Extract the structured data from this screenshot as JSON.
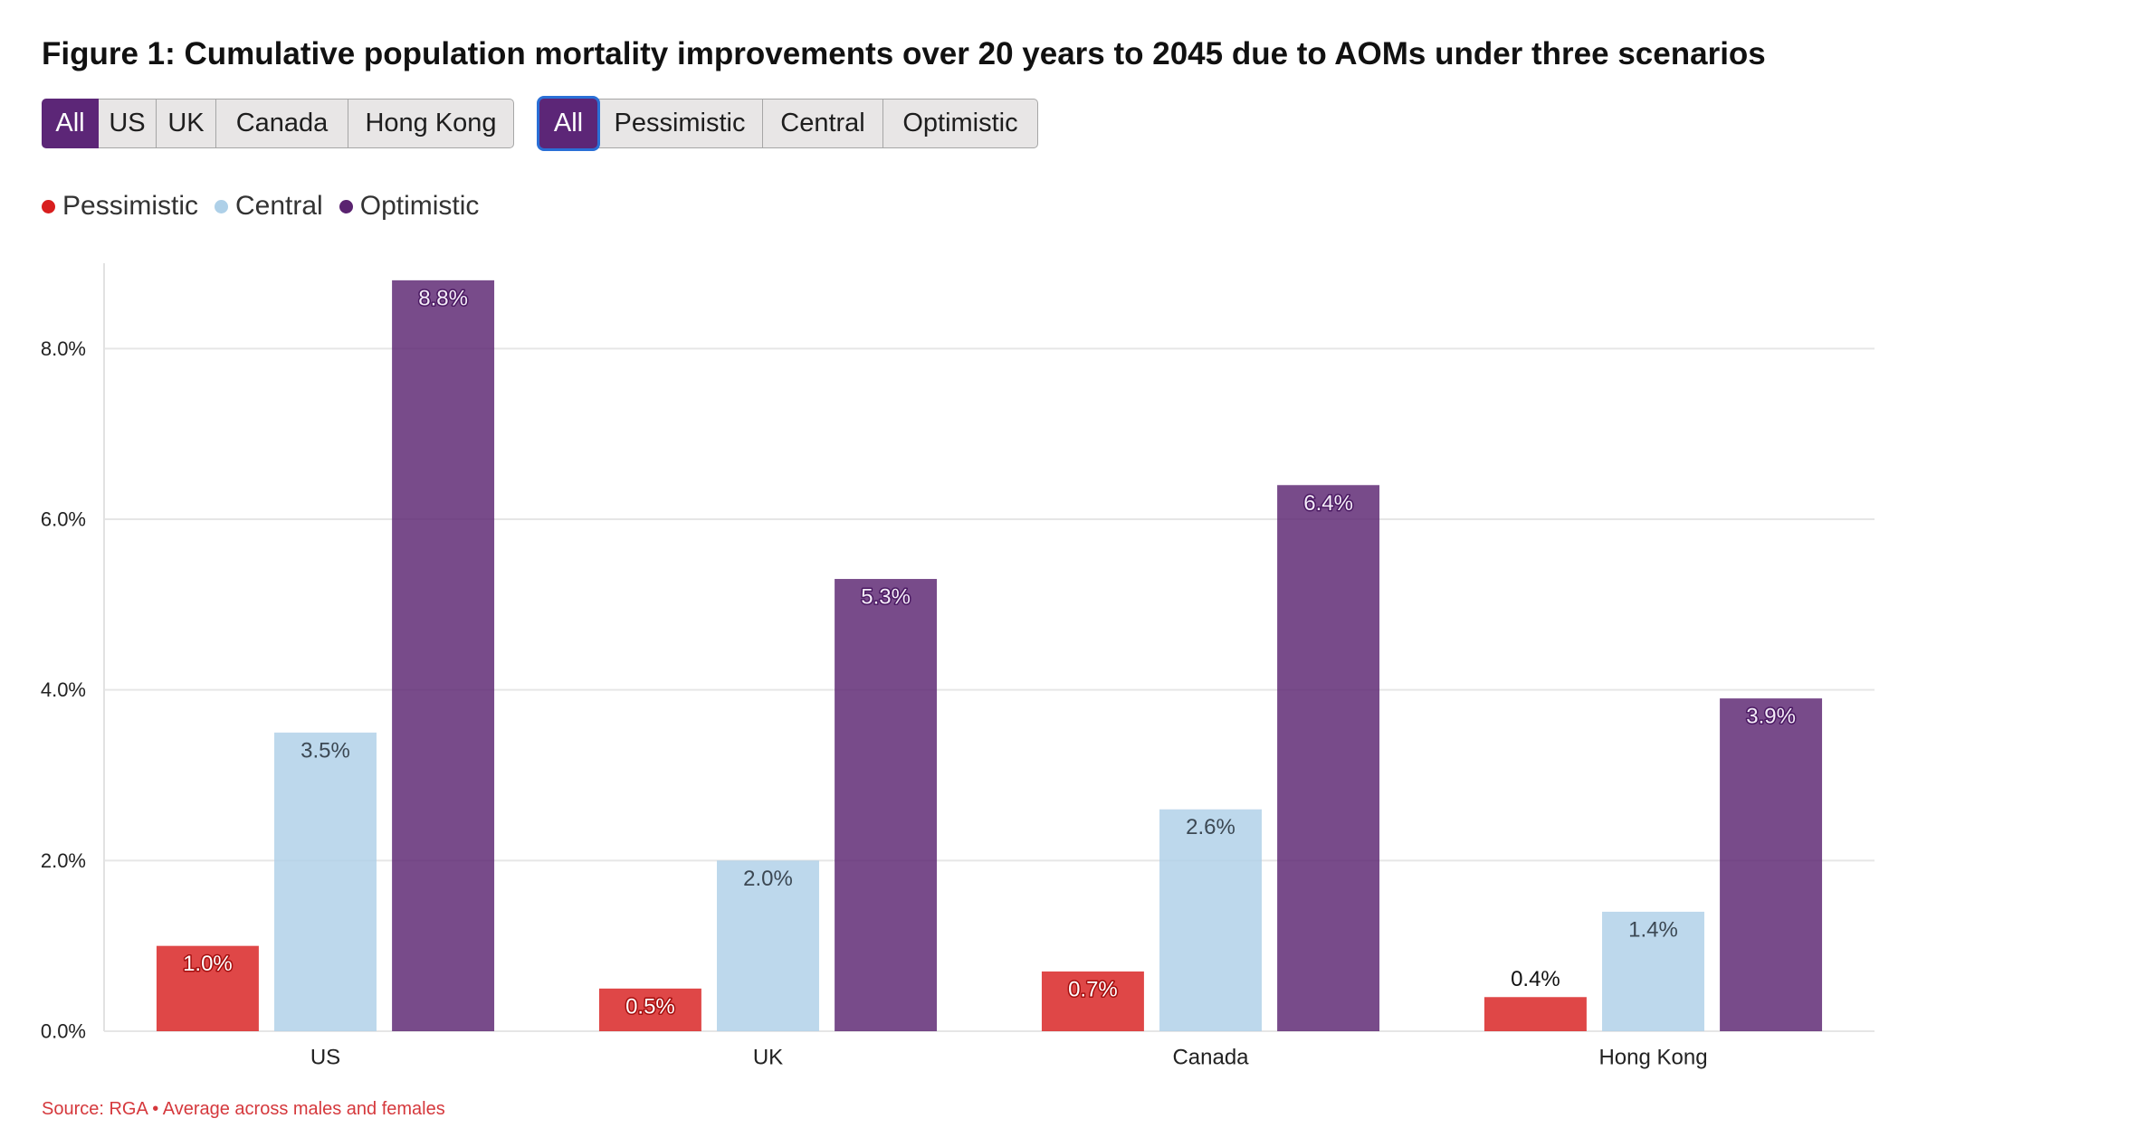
{
  "theme": {
    "accent_color": "#5c2677",
    "focus_ring_color": "#2a6fd6",
    "source_text_color": "#d5383c"
  },
  "filters": {
    "region": {
      "options": [
        {
          "label": "All",
          "active": true
        },
        {
          "label": "US",
          "active": false
        },
        {
          "label": "UK",
          "active": false
        },
        {
          "label": "Canada",
          "active": false
        },
        {
          "label": "Hong Kong",
          "active": false
        }
      ]
    },
    "scenario": {
      "options": [
        {
          "label": "All",
          "active": true,
          "focused": true
        },
        {
          "label": "Pessimistic",
          "active": false
        },
        {
          "label": "Central",
          "active": false
        },
        {
          "label": "Optimistic",
          "active": false
        }
      ]
    }
  },
  "chart_data": {
    "type": "bar",
    "title": "Figure 1: Cumulative population mortality improvements over 20 years to 2045 due to AOMs under three scenarios",
    "categories": [
      "US",
      "UK",
      "Canada",
      "Hong Kong"
    ],
    "series": [
      {
        "name": "Pessimistic",
        "color": "#d81e1e",
        "values": [
          1.0,
          0.5,
          0.7,
          0.4
        ],
        "labels": [
          "1.0%",
          "0.5%",
          "0.7%",
          "0.4%"
        ]
      },
      {
        "name": "Central",
        "color": "#aed0e8",
        "values": [
          3.5,
          2.0,
          2.6,
          1.4
        ],
        "labels": [
          "3.5%",
          "2.0%",
          "2.6%",
          "1.4%"
        ]
      },
      {
        "name": "Optimistic",
        "color": "#5a2370",
        "values": [
          8.8,
          5.3,
          6.4,
          3.9
        ],
        "labels": [
          "8.8%",
          "5.3%",
          "6.4%",
          "3.9%"
        ]
      }
    ],
    "ylim": [
      0,
      9
    ],
    "yticks": [
      {
        "value": 0,
        "label": "0.0%"
      },
      {
        "value": 2,
        "label": "2.0%"
      },
      {
        "value": 4,
        "label": "4.0%"
      },
      {
        "value": 6,
        "label": "6.0%"
      },
      {
        "value": 8,
        "label": "8.0%"
      }
    ],
    "grid": true,
    "legend_position": "top-left"
  },
  "source_note": "Source: RGA • Average across males and females"
}
